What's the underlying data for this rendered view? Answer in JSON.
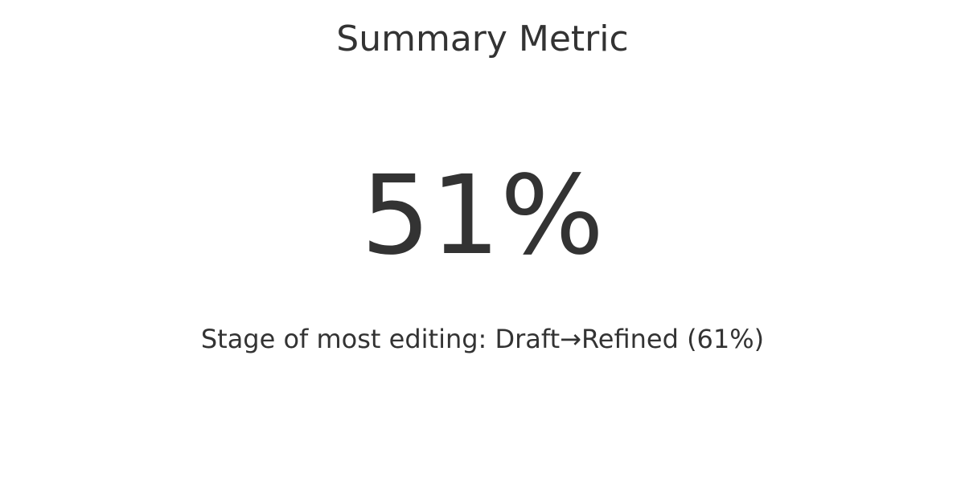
{
  "chart_data": {
    "type": "metric",
    "title": "Summary Metric",
    "value": "51%",
    "subtitle": "Stage of most editing: Draft→Refined (61%)"
  },
  "colors": {
    "text": "#333333",
    "background": "#ffffff"
  }
}
